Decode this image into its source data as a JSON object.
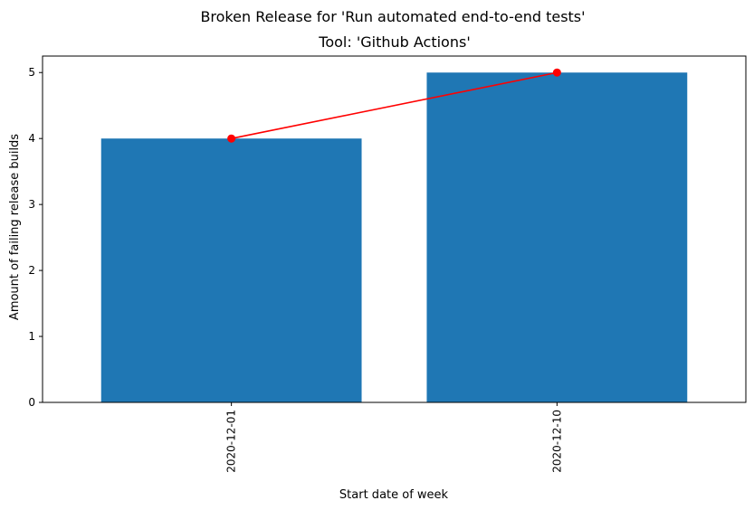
{
  "chart_data": {
    "type": "bar",
    "title": "Broken Release for 'Run automated end-to-end tests'",
    "subtitle": "Tool: 'Github Actions'",
    "xlabel": "Start date of week",
    "ylabel": "Amount of failing release builds",
    "categories": [
      "2020-12-01",
      "2020-12-10"
    ],
    "values": [
      4,
      5
    ],
    "line_values": [
      4,
      5
    ],
    "ylim": [
      0,
      5.25
    ],
    "yticks": [
      0,
      1,
      2,
      3,
      4,
      5
    ],
    "grid": false,
    "colors": {
      "bar": "#1f77b4",
      "line": "#ff0000",
      "marker": "#ff0000"
    }
  }
}
